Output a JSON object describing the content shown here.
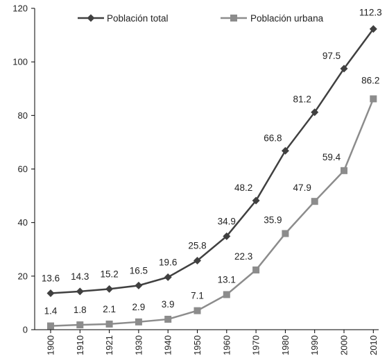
{
  "chart_data": {
    "type": "line",
    "categories": [
      "1900",
      "1910",
      "1921",
      "1930",
      "1940",
      "1950",
      "1960",
      "1970",
      "1980",
      "1990",
      "2000",
      "2010"
    ],
    "series": [
      {
        "name": "Población total",
        "color": "#404040",
        "marker": "diamond",
        "values": [
          13.6,
          14.3,
          15.2,
          16.5,
          19.6,
          25.8,
          34.9,
          48.2,
          66.8,
          81.2,
          97.5,
          112.3
        ]
      },
      {
        "name": "Población urbana",
        "color": "#8c8c8c",
        "marker": "square",
        "values": [
          1.4,
          1.8,
          2.1,
          2.9,
          3.9,
          7.1,
          13.1,
          22.3,
          35.9,
          47.9,
          59.4,
          86.2
        ]
      }
    ],
    "yticks": [
      "0",
      "20",
      "40",
      "60",
      "80",
      "100",
      "120"
    ],
    "ylim": [
      0,
      120
    ],
    "grid": false,
    "legend_position": "top",
    "title": "",
    "xlabel": "",
    "ylabel": ""
  }
}
